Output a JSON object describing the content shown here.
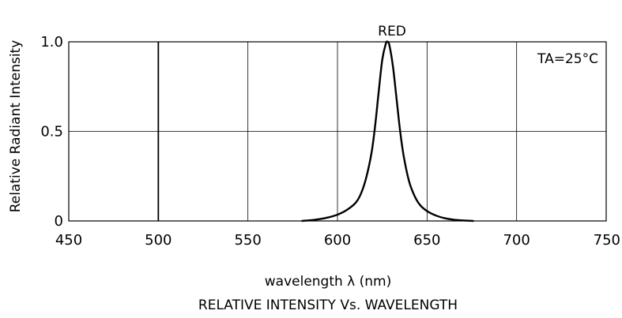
{
  "chart_data": {
    "type": "line",
    "title": "RELATIVE INTENSITY Vs. WAVELENGTH",
    "xlabel": "wavelength λ (nm)",
    "ylabel": "Relative Radiant Intensity",
    "xlim": [
      450,
      750
    ],
    "ylim": [
      0,
      1.0
    ],
    "x_ticks": [
      "450",
      "500",
      "550",
      "600",
      "650",
      "700",
      "750"
    ],
    "y_ticks": [
      "0",
      "0.5",
      "1.0"
    ],
    "grid": true,
    "annotations": {
      "peak_label": "RED",
      "condition": "TA=25°C"
    },
    "series": [
      {
        "name": "RED",
        "x": [
          580,
          585,
          590,
          595,
          600,
          605,
          610,
          613,
          616,
          619,
          621,
          623,
          625,
          627,
          628,
          629,
          631,
          633,
          635,
          637,
          640,
          643,
          646,
          650,
          655,
          660,
          665,
          670,
          676
        ],
        "y": [
          0.0,
          0.004,
          0.01,
          0.02,
          0.035,
          0.06,
          0.1,
          0.15,
          0.24,
          0.38,
          0.53,
          0.72,
          0.9,
          0.99,
          1.0,
          0.98,
          0.86,
          0.68,
          0.5,
          0.36,
          0.22,
          0.14,
          0.09,
          0.055,
          0.03,
          0.015,
          0.007,
          0.003,
          0.0
        ]
      }
    ]
  }
}
